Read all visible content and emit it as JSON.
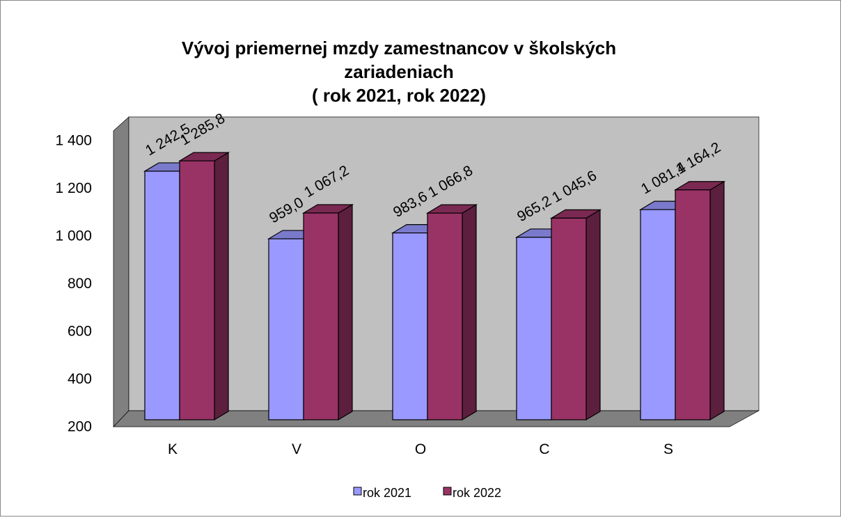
{
  "chart_data": {
    "type": "bar3d",
    "title": [
      "Vývoj priemernej   mzdy zamestnancov v školských",
      "zariadeniach",
      "( rok 2021, rok 2022)"
    ],
    "categories": [
      "K",
      "V",
      "O",
      "C",
      "S"
    ],
    "series": [
      {
        "name": "rok 2021",
        "color": "#9999ff",
        "values": [
          1242.5,
          959.0,
          983.6,
          965.2,
          1081.4
        ],
        "value_labels": [
          "1 242,5",
          "959,0",
          "983,6",
          "965,2",
          "1 081,4"
        ]
      },
      {
        "name": "rok 2022",
        "color": "#993366",
        "values": [
          1285.8,
          1067.2,
          1066.8,
          1045.6,
          1164.2
        ],
        "value_labels": [
          "1 285,8",
          "1 067,2",
          "1 066,8",
          "1 045,6",
          "1 164,2"
        ]
      }
    ],
    "ylim": [
      200,
      1400
    ],
    "yticks": [
      200,
      400,
      600,
      800,
      {
        "value": 1000,
        "label": "1 000"
      },
      {
        "value": 1200,
        "label": "1 200"
      },
      {
        "value": 1400,
        "label": "1 400"
      }
    ],
    "legend": "bottom"
  }
}
